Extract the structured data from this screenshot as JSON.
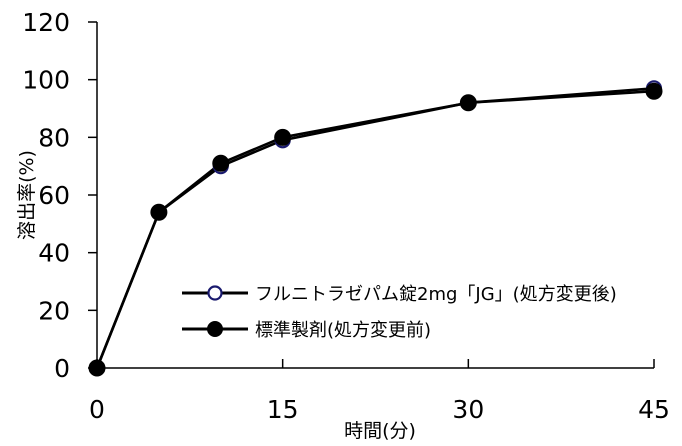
{
  "chart_data": {
    "type": "line",
    "title": "",
    "xlabel": "時間(分)",
    "ylabel": "溶出率(%)",
    "xlim": [
      0,
      45
    ],
    "ylim": [
      0,
      120
    ],
    "x_ticks": [
      0,
      15,
      30,
      45
    ],
    "y_ticks": [
      0,
      20,
      40,
      60,
      80,
      100,
      120
    ],
    "x_tick_labels": [
      "0",
      "15",
      "30",
      "45"
    ],
    "y_tick_labels": [
      "0",
      "20",
      "40",
      "60",
      "80",
      "100",
      "120"
    ],
    "grid": false,
    "legend_position": "bottom-right",
    "series": [
      {
        "name": "フルニトラゼパム錠2mg「JG」(処方変更後)",
        "marker": "open-circle",
        "color": "#1a1a6e",
        "x": [
          0,
          5,
          10,
          15,
          30,
          45
        ],
        "y": [
          0,
          54,
          70,
          79,
          92,
          97
        ]
      },
      {
        "name": "標準製剤(処方変更前)",
        "marker": "filled-circle",
        "color": "#000000",
        "x": [
          0,
          5,
          10,
          15,
          30,
          45
        ],
        "y": [
          0,
          54,
          71,
          80,
          92,
          96
        ]
      }
    ]
  }
}
